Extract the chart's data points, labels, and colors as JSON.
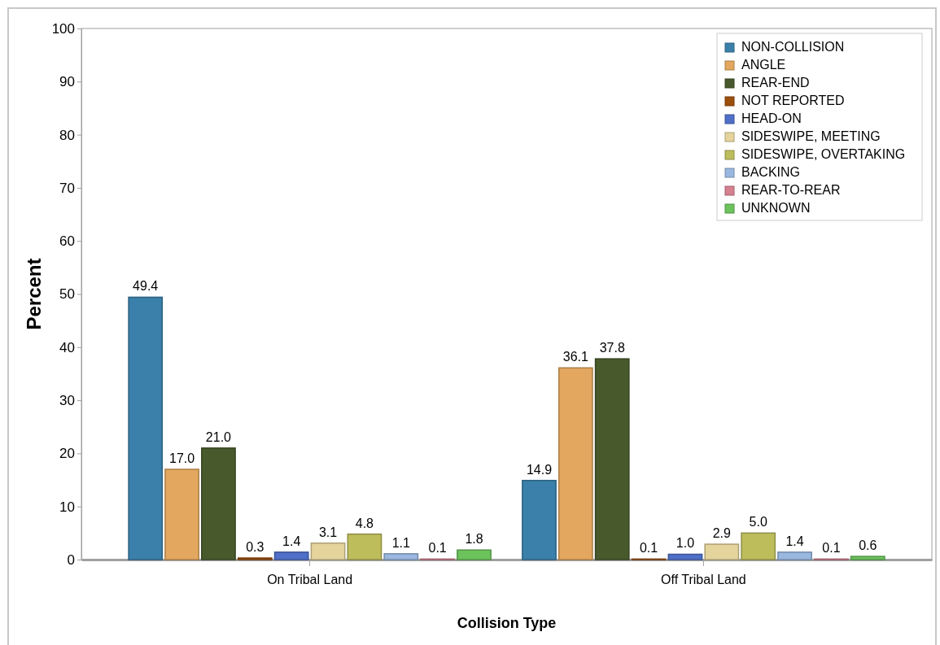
{
  "chart_data": {
    "type": "bar",
    "xlabel": "Collision Type",
    "ylabel": "Percent",
    "categories": [
      "On Tribal Land",
      "Off Tribal Land"
    ],
    "ylim": [
      0,
      100
    ],
    "yticks": [
      0,
      10,
      20,
      30,
      40,
      50,
      60,
      70,
      80,
      90,
      100
    ],
    "grid": false,
    "legend": "top right",
    "series": [
      {
        "name": "NON-COLLISION",
        "color": "#3a80aa",
        "values": [
          49.4,
          14.9
        ],
        "value_labels": [
          "49.4",
          "14.9"
        ]
      },
      {
        "name": "ANGLE",
        "color": "#e3a75f",
        "values": [
          17.0,
          36.1
        ],
        "value_labels": [
          "17.0",
          "36.1"
        ]
      },
      {
        "name": "REAR-END",
        "color": "#48592c",
        "values": [
          21.0,
          37.8
        ],
        "value_labels": [
          "21.0",
          "37.8"
        ]
      },
      {
        "name": "NOT REPORTED",
        "color": "#9c4f0d",
        "values": [
          0.3,
          0.1
        ],
        "value_labels": [
          "0.3",
          "0.1"
        ]
      },
      {
        "name": "HEAD-ON",
        "color": "#4f6fc8",
        "values": [
          1.4,
          1.0
        ],
        "value_labels": [
          "1.4",
          "1.0"
        ]
      },
      {
        "name": "SIDESWIPE, MEETING",
        "color": "#e5d49c",
        "values": [
          3.1,
          2.9
        ],
        "value_labels": [
          "3.1",
          "2.9"
        ]
      },
      {
        "name": "SIDESWIPE, OVERTAKING",
        "color": "#bdbd5c",
        "values": [
          4.8,
          5.0
        ],
        "value_labels": [
          "4.8",
          "5.0"
        ]
      },
      {
        "name": "BACKING",
        "color": "#9ab7e0",
        "values": [
          1.1,
          1.4
        ],
        "value_labels": [
          "1.1",
          "1.4"
        ]
      },
      {
        "name": "REAR-TO-REAR",
        "color": "#d7808f",
        "values": [
          0.1,
          0.1
        ],
        "value_labels": [
          "0.1",
          "0.1"
        ]
      },
      {
        "name": "UNKNOWN",
        "color": "#6cc35c",
        "values": [
          1.8,
          0.6
        ],
        "value_labels": [
          "1.8",
          "0.6"
        ]
      }
    ]
  }
}
